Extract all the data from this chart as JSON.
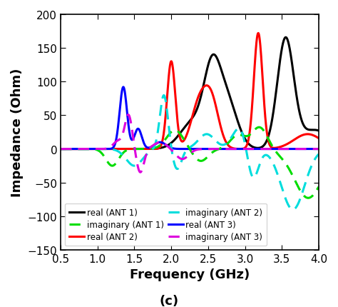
{
  "title": "(c)",
  "xlabel": "Frequency (GHz)",
  "ylabel": "Impedance (Ohm)",
  "xlim": [
    0.5,
    4.0
  ],
  "ylim": [
    -150,
    200
  ],
  "yticks": [
    -150,
    -100,
    -50,
    0,
    50,
    100,
    150,
    200
  ],
  "xticks": [
    0.5,
    1.0,
    1.5,
    2.0,
    2.5,
    3.0,
    3.5,
    4.0
  ],
  "colors": {
    "ant1_real": "#000000",
    "ant2_real": "#ff0000",
    "ant3_real": "#0000ff",
    "ant1_imag": "#00dd00",
    "ant2_imag": "#00dddd",
    "ant3_imag": "#dd00dd"
  },
  "linewidth": 2.2,
  "legend_fontsize": 8.5,
  "label_fontsize": 13,
  "tick_fontsize": 11
}
